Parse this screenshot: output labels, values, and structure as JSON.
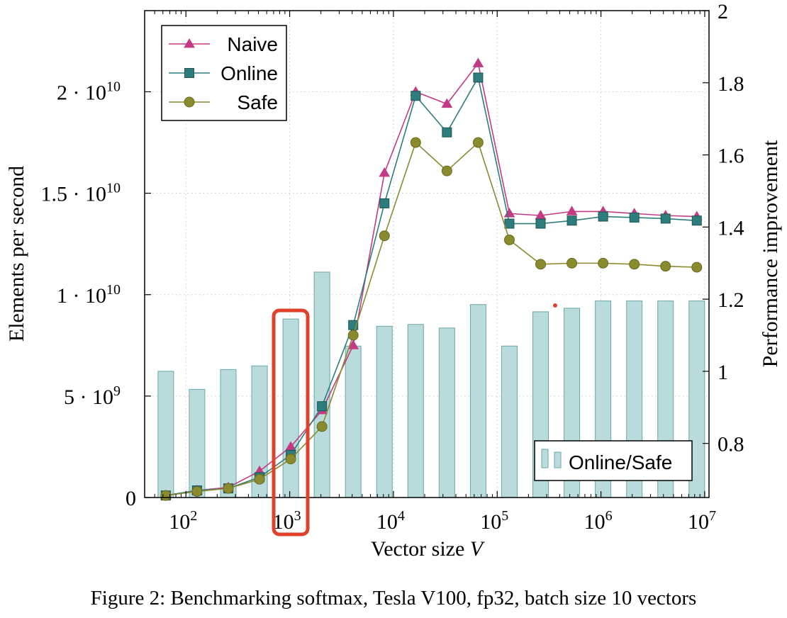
{
  "caption": "Figure 2: Benchmarking softmax, Tesla V100, fp32, batch size 10 vectors",
  "chart_data": {
    "type": "line",
    "xlabel": "Vector size V",
    "ylabel": "Elements per second",
    "y2label": "Performance improvement",
    "x_scale": "log",
    "xlim": [
      40,
      11000000
    ],
    "ylim": [
      0,
      24000000000
    ],
    "y2lim": [
      0.65,
      2.0
    ],
    "x_ticks": [
      {
        "value": 100,
        "base": "10",
        "exp": "2"
      },
      {
        "value": 1000,
        "base": "10",
        "exp": "3"
      },
      {
        "value": 10000,
        "base": "10",
        "exp": "4"
      },
      {
        "value": 100000,
        "base": "10",
        "exp": "5"
      },
      {
        "value": 1000000,
        "base": "10",
        "exp": "6"
      },
      {
        "value": 10000000,
        "base": "10",
        "exp": "7"
      }
    ],
    "y_ticks": [
      {
        "value": 0,
        "label": "0",
        "exp": ""
      },
      {
        "value": 5000000000,
        "label": "5 · 10",
        "exp": "9"
      },
      {
        "value": 10000000000,
        "label": "1 · 10",
        "exp": "10"
      },
      {
        "value": 15000000000,
        "label": "1.5 · 10",
        "exp": "10"
      },
      {
        "value": 20000000000,
        "label": "2 · 10",
        "exp": "10"
      }
    ],
    "y2_ticks": [
      {
        "value": 0.8,
        "label": "0.8"
      },
      {
        "value": 1.0,
        "label": "1"
      },
      {
        "value": 1.2,
        "label": "1.2"
      },
      {
        "value": 1.4,
        "label": "1.4"
      },
      {
        "value": 1.6,
        "label": "1.6"
      },
      {
        "value": 1.8,
        "label": "1.8"
      },
      {
        "value": 2.0,
        "label": "2"
      }
    ],
    "x": [
      64,
      128,
      256,
      512,
      1024,
      2048,
      4096,
      8192,
      16384,
      32768,
      65536,
      131072,
      262144,
      524288,
      1048576,
      2097152,
      4194304,
      8388608
    ],
    "series": [
      {
        "name": "Naive",
        "marker": "triangle",
        "color": "#c23a83",
        "values": [
          100000000,
          350000000,
          500000000,
          1300000000,
          2500000000,
          4300000000,
          7500000000,
          16000000000,
          20000000000,
          19400000000,
          21400000000,
          14000000000,
          13900000000,
          14100000000,
          14100000000,
          14000000000,
          13900000000,
          13850000000
        ]
      },
      {
        "name": "Online",
        "marker": "square",
        "color": "#2e7d7d",
        "values": [
          100000000,
          350000000,
          450000000,
          1000000000,
          2100000000,
          4500000000,
          8500000000,
          14500000000,
          19800000000,
          18000000000,
          20700000000,
          13500000000,
          13500000000,
          13650000000,
          13850000000,
          13800000000,
          13750000000,
          13650000000
        ]
      },
      {
        "name": "Safe",
        "marker": "circle",
        "color": "#8a8a2e",
        "values": [
          100000000,
          300000000,
          450000000,
          900000000,
          1900000000,
          3500000000,
          8000000000,
          12900000000,
          17500000000,
          16100000000,
          17500000000,
          12700000000,
          11500000000,
          11550000000,
          11550000000,
          11500000000,
          11400000000,
          11350000000
        ]
      }
    ],
    "bars": {
      "name": "Online/Safe",
      "color": "#b9dbdb",
      "edge": "#6aa8a8",
      "values": [
        1.0,
        0.95,
        1.005,
        1.015,
        1.145,
        1.275,
        1.07,
        1.125,
        1.13,
        1.12,
        1.185,
        1.07,
        1.165,
        1.175,
        1.195,
        1.195,
        1.195,
        1.195
      ]
    },
    "legend_position": "top-left",
    "bar_legend_position": "bottom-right",
    "grid": true,
    "highlight_color": "#e0412b"
  }
}
